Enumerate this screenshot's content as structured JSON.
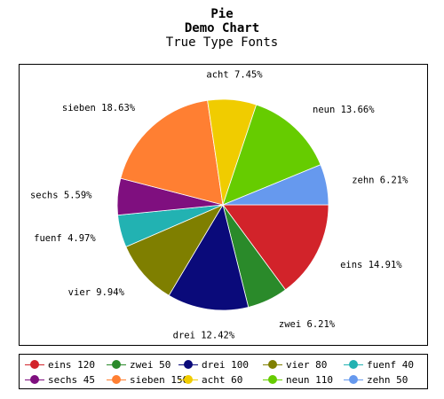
{
  "chart_data": {
    "type": "pie",
    "title": "Pie",
    "subtitle": "Demo Chart",
    "subtitle2": "True Type Fonts",
    "categories": [
      "eins",
      "zwei",
      "drei",
      "vier",
      "fuenf",
      "sechs",
      "sieben",
      "acht",
      "neun",
      "zehn"
    ],
    "values": [
      120,
      50,
      100,
      80,
      40,
      45,
      150,
      60,
      110,
      50
    ],
    "slice_labels": [
      "eins 14.91%",
      "zwei 6.21%",
      "drei 12.42%",
      "vier 9.94%",
      "fuenf 4.97%",
      "sechs 5.59%",
      "sieben 18.63%",
      "acht 7.45%",
      "neun 13.66%",
      "zehn 6.21%"
    ],
    "legend_labels": [
      "eins 120",
      "zwei 50",
      "drei 100",
      "vier 80",
      "fuenf 40",
      "sechs 45",
      "sieben 150",
      "acht 60",
      "neun 110",
      "zehn 50"
    ],
    "colors": [
      "#d2232a",
      "#2a8a2a",
      "#0a0a7a",
      "#7f7f00",
      "#22b2b2",
      "#7f0f7f",
      "#ff7f32",
      "#f0cc00",
      "#66cc00",
      "#6699ee"
    ],
    "legend_placement": "bottom"
  }
}
